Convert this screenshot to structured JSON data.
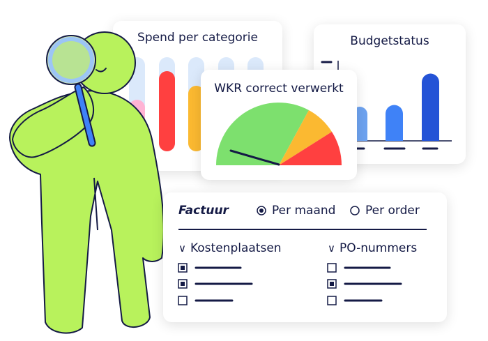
{
  "spend_card": {
    "title": "Spend per categorie"
  },
  "budget_card": {
    "title": "Budgetstatus"
  },
  "wkr_card": {
    "title": "WKR correct verwerkt"
  },
  "factuur_card": {
    "label": "Factuur",
    "radio_options": [
      {
        "label": "Per maand",
        "selected": true
      },
      {
        "label": "Per order",
        "selected": false
      }
    ],
    "groups": [
      {
        "label": "Kostenplaatsen",
        "items": [
          {
            "checked": true
          },
          {
            "checked": true
          },
          {
            "checked": false
          }
        ]
      },
      {
        "label": "PO-nummers",
        "items": [
          {
            "checked": false
          },
          {
            "checked": true
          },
          {
            "checked": false
          }
        ]
      }
    ]
  },
  "colors": {
    "person": "#b8f25c",
    "ink": "#141a45",
    "green": "#7de06e",
    "yellow": "#fbb931",
    "red": "#ff4040",
    "blue": "#3f82f7",
    "dark_blue": "#2453d6",
    "light_blue": "#dbe9fb"
  }
}
